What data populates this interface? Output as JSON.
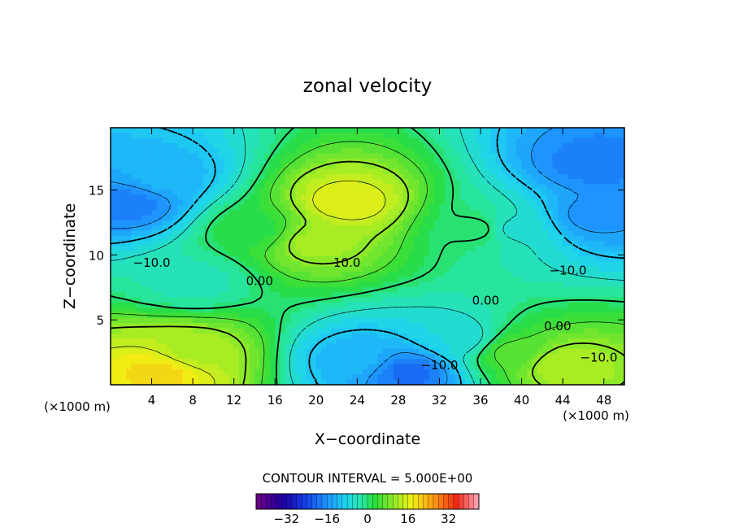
{
  "chart_data": {
    "type": "heatmap",
    "title": "zonal velocity",
    "xlabel": "X−coordinate",
    "ylabel": "Z−coordinate",
    "x_unit_label": "(×1000 m)",
    "z_unit_label": "(×1000 m)",
    "xlim": [
      0,
      50
    ],
    "ylim": [
      0,
      19.8
    ],
    "x_ticks": [
      4,
      8,
      12,
      16,
      20,
      24,
      28,
      32,
      36,
      40,
      44,
      48
    ],
    "y_ticks": [
      5,
      10,
      15
    ],
    "contour_interval_text": "CONTOUR INTERVAL = 5.000E+00",
    "contour_labels": [
      {
        "text": "−10.0",
        "x": 4,
        "y": 9.4
      },
      {
        "text": "0.00",
        "x": 14.5,
        "y": 8.0
      },
      {
        "text": "10.0",
        "x": 23,
        "y": 9.4
      },
      {
        "text": "−10.0",
        "x": 44.5,
        "y": 8.8
      },
      {
        "text": "0.00",
        "x": 36.5,
        "y": 6.5
      },
      {
        "text": "0.00",
        "x": 43.5,
        "y": 4.5
      },
      {
        "text": "−10.0",
        "x": 32,
        "y": 1.5
      },
      {
        "text": "−10.0",
        "x": 47.5,
        "y": 2.1
      }
    ],
    "colorbar": {
      "range": [
        -44,
        44
      ],
      "tick_values": [
        -32,
        -16,
        0,
        16,
        32
      ],
      "tick_labels": [
        "−32",
        "−16",
        "0",
        "16",
        "32"
      ]
    },
    "field_features": [
      {
        "x": 2,
        "z": 14,
        "value": -18
      },
      {
        "x": 5,
        "z": 16,
        "value": -12
      },
      {
        "x": 47,
        "z": 17,
        "value": -18
      },
      {
        "x": 47,
        "z": 13,
        "value": -16
      },
      {
        "x": 23,
        "z": 14,
        "value": 17
      },
      {
        "x": 20,
        "z": 11,
        "value": 12
      },
      {
        "x": 5,
        "z": 1,
        "value": 20
      },
      {
        "x": 8,
        "z": 2.5,
        "value": 12
      },
      {
        "x": 29,
        "z": 1,
        "value": -20
      },
      {
        "x": 24,
        "z": 2,
        "value": -12
      },
      {
        "x": 34,
        "z": 3.5,
        "value": -7
      },
      {
        "x": 44,
        "z": 1.5,
        "value": 13
      },
      {
        "x": 39,
        "z": 2.5,
        "value": 6
      },
      {
        "x": 8,
        "z": 8,
        "value": -4
      },
      {
        "x": 14,
        "z": 12,
        "value": 2
      },
      {
        "x": 36,
        "z": 12,
        "value": 1
      },
      {
        "x": 39,
        "z": 12,
        "value": -6
      }
    ]
  }
}
